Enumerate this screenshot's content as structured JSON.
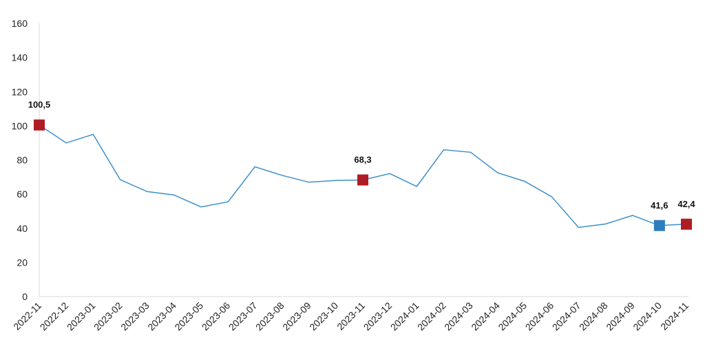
{
  "chart_data": {
    "type": "line",
    "title": "",
    "xlabel": "",
    "ylabel": "",
    "categories": [
      "2022-11",
      "2022-12",
      "2023-01",
      "2023-02",
      "2023-03",
      "2023-04",
      "2023-05",
      "2023-06",
      "2023-07",
      "2023-08",
      "2023-09",
      "2023-10",
      "2023-11",
      "2023-12",
      "2024-01",
      "2024-02",
      "2024-03",
      "2024-04",
      "2024-05",
      "2024-06",
      "2024-07",
      "2024-08",
      "2024-09",
      "2024-10",
      "2024-11"
    ],
    "series": [
      {
        "values": [
          100.5,
          90,
          95,
          68.5,
          61.5,
          59.5,
          52.5,
          55.5,
          76,
          71,
          67,
          68,
          68.3,
          72,
          64.5,
          86,
          84.5,
          72.5,
          67.5,
          58.5,
          40.5,
          42.5,
          47.5,
          41.6,
          42.4
        ],
        "color": "#3d8fc8"
      }
    ],
    "ylim": [
      0,
      160
    ],
    "yticks": [
      0,
      20,
      40,
      60,
      80,
      100,
      120,
      140,
      160
    ],
    "grid": false,
    "highlights": [
      {
        "index": 0,
        "label": "100,5",
        "color": "#b01c23"
      },
      {
        "index": 12,
        "label": "68,3",
        "color": "#b01c23"
      },
      {
        "index": 23,
        "label": "41,6",
        "color": "#2e7dbd"
      },
      {
        "index": 24,
        "label": "42,4",
        "color": "#b01c23"
      }
    ]
  }
}
